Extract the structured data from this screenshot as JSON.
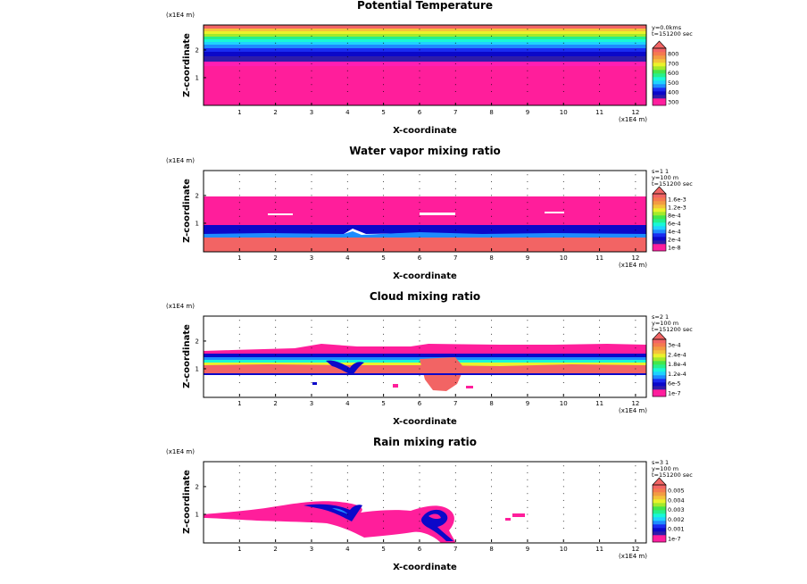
{
  "chart_data": [
    {
      "type": "heatmap",
      "title": "Potential Temperature",
      "xlabel": "X-coordinate",
      "ylabel": "Z-coordinate",
      "x_unit": "(x1E4 m)",
      "y_unit": "(x1E4 m)",
      "xticks": [
        "1",
        "2",
        "3",
        "4",
        "5",
        "6",
        "7",
        "8",
        "9",
        "10",
        "11",
        "12"
      ],
      "yticks": [
        "1",
        "2"
      ],
      "xlim": [
        0,
        12.3
      ],
      "ylim": [
        0,
        2.9
      ],
      "info": [
        "y=0.0kms",
        "t=151200 sec"
      ],
      "colorbar": {
        "labels": [
          "300",
          "400",
          "500",
          "600",
          "700",
          "800"
        ],
        "colors": [
          "#ff1ea0",
          "#ff1e9b",
          "#2e1caa",
          "#0b08c9",
          "#1a2cf0",
          "#1e8bff",
          "#1fd2ff",
          "#18f7d8",
          "#26f08a",
          "#43e64b",
          "#a2ea2c",
          "#eaf22b",
          "#f4c23a",
          "#f29c43",
          "#f57a4f",
          "#f26464"
        ]
      }
    },
    {
      "type": "heatmap",
      "title": "Water vapor mixing ratio",
      "xlabel": "X-coordinate",
      "ylabel": "Z-coordinate",
      "x_unit": "(x1E4 m)",
      "y_unit": "(x1E4 m)",
      "xticks": [
        "1",
        "2",
        "3",
        "4",
        "5",
        "6",
        "7",
        "8",
        "9",
        "10",
        "11",
        "12"
      ],
      "yticks": [
        "1",
        "2"
      ],
      "xlim": [
        0,
        12.3
      ],
      "ylim": [
        0,
        2.9
      ],
      "info": [
        "s=1 1",
        "y=100 m",
        "t=151200 sec"
      ],
      "colorbar": {
        "labels": [
          "1e-8",
          "2e-4",
          "4e-4",
          "6e-4",
          "8e-4",
          "1.2e-3",
          "1.6e-3"
        ],
        "colors": [
          "#ff1ea0",
          "#ff1e9b",
          "#2e1caa",
          "#0b08c9",
          "#1a2cf0",
          "#1e8bff",
          "#1fd2ff",
          "#18f7d8",
          "#26f08a",
          "#43e64b",
          "#a2ea2c",
          "#eaf22b",
          "#f4c23a",
          "#f29c43",
          "#f57a4f",
          "#f26464"
        ]
      }
    },
    {
      "type": "heatmap",
      "title": "Cloud mixing ratio",
      "xlabel": "X-coordinate",
      "ylabel": "Z-coordinate",
      "x_unit": "(x1E4 m)",
      "y_unit": "(x1E4 m)",
      "xticks": [
        "1",
        "2",
        "3",
        "4",
        "5",
        "6",
        "7",
        "8",
        "9",
        "10",
        "11",
        "12"
      ],
      "yticks": [
        "1",
        "2"
      ],
      "xlim": [
        0,
        12.3
      ],
      "ylim": [
        0,
        2.9
      ],
      "info": [
        "s=2 1",
        "y=100 m",
        "t=151200 sec"
      ],
      "colorbar": {
        "labels": [
          "1e-7",
          "6e-5",
          "1.2e-4",
          "1.8e-4",
          "2.4e-4",
          "3e-4"
        ],
        "colors": [
          "#ff1ea0",
          "#ff1e9b",
          "#2e1caa",
          "#0b08c9",
          "#1a2cf0",
          "#1e8bff",
          "#1fd2ff",
          "#18f7d8",
          "#26f08a",
          "#43e64b",
          "#a2ea2c",
          "#eaf22b",
          "#f4c23a",
          "#f29c43",
          "#f57a4f",
          "#f26464"
        ]
      }
    },
    {
      "type": "heatmap",
      "title": "Rain mixing ratio",
      "xlabel": "X-coordinate",
      "ylabel": "Z-coordinate",
      "x_unit": "(x1E4 m)",
      "y_unit": "(x1E4 m)",
      "xticks": [
        "1",
        "2",
        "3",
        "4",
        "5",
        "6",
        "7",
        "8",
        "9",
        "10",
        "11",
        "12"
      ],
      "yticks": [
        "1",
        "2"
      ],
      "xlim": [
        0,
        12.3
      ],
      "ylim": [
        0,
        2.9
      ],
      "info": [
        "s=3 1",
        "y=100 m",
        "t=151200 sec"
      ],
      "colorbar": {
        "labels": [
          "1e-7",
          "0.001",
          "0.002",
          "0.003",
          "0.004",
          "0.005"
        ],
        "colors": [
          "#ff1ea0",
          "#ff1e9b",
          "#2e1caa",
          "#0b08c9",
          "#1a2cf0",
          "#1e8bff",
          "#1fd2ff",
          "#18f7d8",
          "#26f08a",
          "#43e64b",
          "#a2ea2c",
          "#eaf22b",
          "#f4c23a",
          "#f29c43",
          "#f57a4f",
          "#f26464"
        ]
      }
    }
  ]
}
